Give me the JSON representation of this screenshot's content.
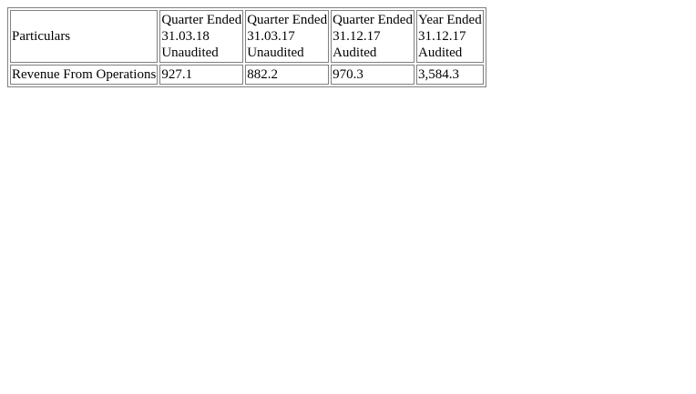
{
  "table": {
    "header": {
      "particulars": "Particulars",
      "columns": [
        {
          "line1": "Quarter Ended",
          "line2": "31.03.18",
          "line3": "Unaudited"
        },
        {
          "line1": "Quarter Ended",
          "line2": "31.03.17",
          "line3": "Unaudited"
        },
        {
          "line1": "Quarter Ended",
          "line2": "31.12.17",
          "line3": "Audited"
        },
        {
          "line1": "Year Ended",
          "line2": "31.12.17",
          "line3": "Audited"
        }
      ]
    },
    "rows": [
      {
        "label": "Revenue From Operations",
        "values": [
          "927.1",
          "882.2",
          "970.3",
          "3,584.3"
        ]
      }
    ]
  }
}
